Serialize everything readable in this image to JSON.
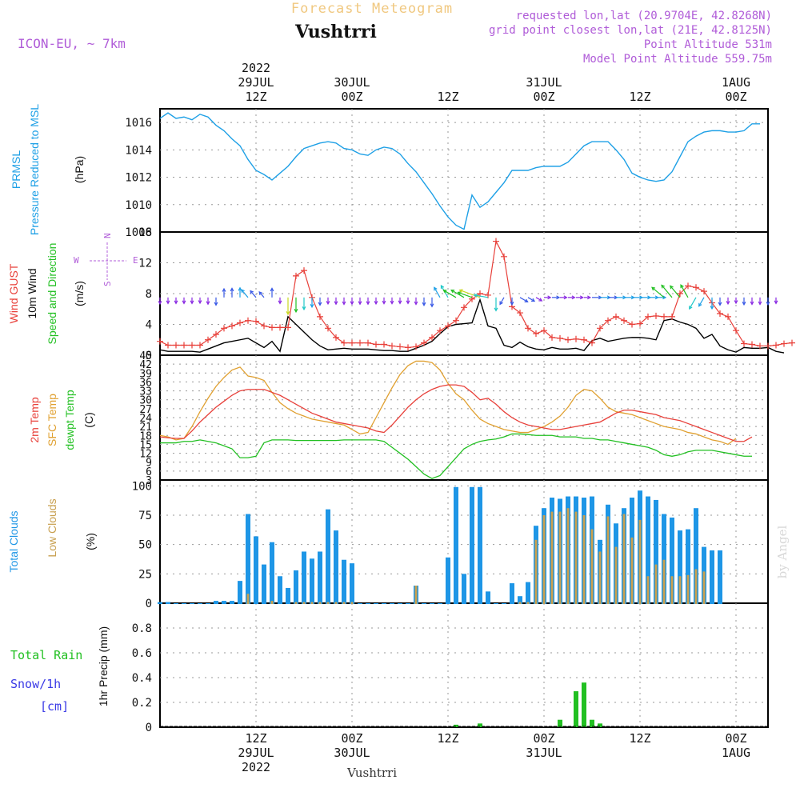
{
  "header": {
    "app_title": "Forecast Meteogram",
    "location": "Vushtrri",
    "model": "ICON-EU, ~ 7km",
    "requested": "requested lon,lat (20.9704E, 42.8268N)",
    "grid": "grid point closest lon,lat (21E, 42.8125N)",
    "point_alt": "Point Altitude 531m",
    "model_alt": "Model Point Altitude 559.75m",
    "footer": "Vushtrri",
    "credit": "by Angel"
  },
  "colors": {
    "pressure": "#1ea0e6",
    "gust": "#e8403a",
    "wind": "#000000",
    "sfc": "#e0a030",
    "dew": "#22c022",
    "total_cloud": "#1e96e6",
    "low_cloud": "#c8a050",
    "rain": "#22c022",
    "snow": "#3a3ae6",
    "purple": "#b05cd8"
  },
  "time_axis": {
    "ticks": [
      {
        "t": 12,
        "top": [
          "2022",
          "29JUL",
          "12Z"
        ],
        "bottom": [
          "12Z",
          "29JUL",
          "2022"
        ]
      },
      {
        "t": 24,
        "top": [
          "30JUL",
          "00Z"
        ],
        "bottom": [
          "00Z",
          "30JUL"
        ]
      },
      {
        "t": 36,
        "top": [
          "12Z"
        ],
        "bottom": [
          "12Z"
        ]
      },
      {
        "t": 48,
        "top": [
          "31JUL",
          "00Z"
        ],
        "bottom": [
          "00Z",
          "31JUL"
        ]
      },
      {
        "t": 60,
        "top": [
          "12Z"
        ],
        "bottom": [
          "12Z"
        ]
      },
      {
        "t": 72,
        "top": [
          "1AUG",
          "00Z"
        ],
        "bottom": [
          "00Z",
          "1AUG"
        ]
      }
    ]
  },
  "panels": {
    "pressure": {
      "labels": [
        "PRMSL",
        "Pressure Reduced to MSL"
      ],
      "unit": "(hPa)"
    },
    "wind": {
      "labels": [
        "Wind GUST",
        "10m Wind",
        "Speed and Direction"
      ],
      "unit": "(m/s)",
      "compass": {
        "w": "W",
        "e": "E",
        "s": "S",
        "n": "N"
      }
    },
    "temp": {
      "labels": [
        "2m Temp",
        "SFC Temp",
        "dewpt Temp"
      ],
      "unit": "(C)"
    },
    "cloud": {
      "labels": [
        "Total Clouds",
        "Low Clouds"
      ],
      "unit": "(%)"
    },
    "precip": {
      "labels": [
        "Total  Rain",
        "Snow/1h",
        "[cm]",
        "1hr Precip (mm)"
      ]
    }
  },
  "chart_data": {
    "type": "line",
    "x_start": "2022-07-29 01Z",
    "x_range_hours": [
      0,
      76
    ],
    "step_hours": 1,
    "pressure": {
      "ylim": [
        1008,
        1017
      ],
      "ticks": [
        1008,
        1010,
        1012,
        1014,
        1016
      ],
      "values": [
        1016.3,
        1016.7,
        1016.3,
        1016.4,
        1016.2,
        1016.6,
        1016.4,
        1015.8,
        1015.4,
        1014.8,
        1014.3,
        1013.3,
        1012.5,
        1012.2,
        1011.8,
        1012.3,
        1012.8,
        1013.5,
        1014.1,
        1014.3,
        1014.5,
        1014.6,
        1014.5,
        1014.1,
        1014.0,
        1013.7,
        1013.6,
        1014.0,
        1014.2,
        1014.1,
        1013.7,
        1013.0,
        1012.4,
        1011.6,
        1010.8,
        1009.9,
        1009.1,
        1008.5,
        1008.2,
        1010.7,
        1009.8,
        1010.2,
        1010.9,
        1011.6,
        1012.5,
        1012.5,
        1012.5,
        1012.7,
        1012.8,
        1012.8,
        1012.8,
        1013.1,
        1013.7,
        1014.3,
        1014.6,
        1014.6,
        1014.6,
        1014.0,
        1013.3,
        1012.3,
        1012.0,
        1011.8,
        1011.7,
        1011.8,
        1012.4,
        1013.5,
        1014.6,
        1015.0,
        1015.3,
        1015.4,
        1015.4,
        1015.3,
        1015.3,
        1015.4,
        1015.9,
        1015.9
      ]
    },
    "wind": {
      "ylim": [
        0,
        16
      ],
      "ticks": [
        0,
        4,
        8,
        12,
        16
      ],
      "gust": [
        1.8,
        1.3,
        1.3,
        1.3,
        1.3,
        1.3,
        2.0,
        2.7,
        3.5,
        3.8,
        4.2,
        4.5,
        4.4,
        3.8,
        3.6,
        3.6,
        3.6,
        10.3,
        11.0,
        7.5,
        5.0,
        3.5,
        2.3,
        1.6,
        1.6,
        1.6,
        1.6,
        1.4,
        1.4,
        1.2,
        1.1,
        1.0,
        1.1,
        1.6,
        2.3,
        3.2,
        3.8,
        4.5,
        6.2,
        7.3,
        8.0,
        7.8,
        14.8,
        12.8,
        6.3,
        5.5,
        3.5,
        2.8,
        3.2,
        2.3,
        2.2,
        2.0,
        2.1,
        2.0,
        1.6,
        3.5,
        4.5,
        5.0,
        4.5,
        4.0,
        4.1,
        5.0,
        5.1,
        5.0,
        5.0,
        8.0,
        9.0,
        8.8,
        8.3,
        6.8,
        5.4,
        5.0,
        3.2,
        1.5,
        1.4,
        1.2,
        1.2,
        1.3,
        1.5,
        1.6
      ],
      "wind": [
        0.7,
        0.5,
        0.5,
        0.5,
        0.5,
        0.4,
        0.8,
        1.2,
        1.6,
        1.8,
        2.0,
        2.2,
        1.6,
        1.0,
        1.8,
        0.5,
        5.0,
        4.0,
        3.0,
        2.0,
        1.2,
        0.7,
        0.8,
        0.9,
        0.8,
        0.8,
        0.8,
        0.7,
        0.6,
        0.6,
        0.5,
        0.5,
        0.9,
        1.3,
        1.8,
        2.8,
        3.7,
        4.0,
        4.1,
        4.2,
        7.2,
        3.8,
        3.5,
        1.3,
        1.0,
        1.7,
        1.1,
        0.8,
        0.7,
        1.0,
        0.8,
        0.8,
        0.9,
        0.6,
        1.9,
        2.2,
        1.8,
        2.0,
        2.2,
        2.3,
        2.3,
        2.2,
        2.0,
        4.5,
        4.7,
        4.3,
        4.0,
        3.5,
        2.2,
        2.7,
        1.2,
        0.7,
        0.4,
        1.0,
        0.9,
        0.9,
        1.0,
        0.5,
        0.3
      ],
      "direction_deg": [
        0,
        0,
        0,
        0,
        0,
        0,
        0,
        0,
        180,
        180,
        180,
        220,
        220,
        220,
        180,
        0,
        0,
        0,
        0,
        0,
        0,
        0,
        0,
        0,
        0,
        0,
        0,
        0,
        0,
        0,
        0,
        0,
        0,
        0,
        0,
        210,
        210,
        240,
        240,
        250,
        250,
        260,
        0,
        330,
        0,
        60,
        60,
        60,
        90,
        90,
        90,
        90,
        90,
        90,
        90,
        90,
        90,
        90,
        90,
        90,
        90,
        90,
        90,
        230,
        220,
        220,
        210,
        330,
        330,
        0,
        0,
        0,
        0,
        0,
        0,
        0,
        0,
        0
      ]
    },
    "temp": {
      "ylim": [
        3,
        45
      ],
      "ticks": [
        3,
        6,
        9,
        12,
        15,
        18,
        21,
        24,
        27,
        30,
        33,
        36,
        39,
        42,
        45
      ],
      "t2m": [
        17.5,
        17.2,
        17.0,
        17.0,
        19.5,
        22.5,
        25.0,
        27.5,
        29.5,
        31.5,
        33.0,
        33.5,
        33.5,
        33.5,
        32.5,
        31.5,
        30.0,
        28.5,
        27.0,
        25.5,
        24.5,
        23.5,
        22.5,
        22.0,
        21.5,
        21.0,
        20.5,
        19.5,
        19.0,
        21.5,
        24.5,
        27.5,
        30.0,
        32.0,
        33.5,
        34.5,
        35.0,
        35.0,
        34.5,
        32.5,
        30.0,
        30.5,
        28.5,
        26.0,
        24.0,
        22.5,
        21.5,
        21.0,
        20.5,
        20.0,
        20.0,
        20.5,
        21.0,
        21.5,
        22.0,
        22.5,
        24.0,
        25.5,
        26.5,
        26.5,
        26.0,
        25.5,
        25.0,
        24.0,
        23.5,
        23.0,
        22.0,
        21.0,
        20.0,
        19.0,
        18.0,
        17.0,
        16.0,
        16.0,
        17.5
      ],
      "sfc": [
        18.0,
        17.5,
        16.5,
        17.0,
        21.0,
        26.0,
        30.5,
        34.5,
        37.5,
        40.0,
        41.0,
        38.0,
        37.5,
        36.5,
        32.5,
        29.0,
        27.0,
        25.5,
        24.5,
        23.5,
        23.0,
        22.5,
        22.0,
        21.5,
        20.0,
        18.5,
        19.0,
        24.0,
        29.0,
        34.0,
        38.5,
        41.5,
        43.0,
        43.0,
        42.5,
        40.0,
        35.5,
        32.0,
        30.0,
        26.5,
        23.5,
        22.0,
        21.0,
        20.0,
        19.5,
        19.0,
        19.0,
        20.0,
        21.0,
        22.5,
        24.5,
        27.5,
        31.5,
        33.5,
        33.0,
        30.5,
        27.5,
        26.0,
        25.5,
        25.0,
        24.0,
        23.0,
        22.0,
        21.0,
        20.5,
        20.0,
        19.0,
        18.5,
        17.5,
        16.5,
        16.0,
        15.0,
        17.0
      ],
      "dew": [
        15.5,
        15.5,
        15.5,
        16.0,
        16.0,
        16.5,
        16.0,
        15.5,
        14.5,
        13.5,
        10.5,
        10.5,
        11.0,
        15.5,
        16.5,
        16.5,
        16.5,
        16.3,
        16.3,
        16.3,
        16.3,
        16.3,
        16.3,
        16.5,
        16.5,
        16.5,
        16.5,
        16.5,
        16.0,
        14.0,
        12.0,
        10.0,
        7.5,
        5.0,
        3.5,
        4.5,
        7.5,
        10.5,
        13.5,
        15.0,
        16.0,
        16.5,
        16.8,
        17.5,
        18.5,
        18.5,
        18.3,
        18.0,
        18.0,
        18.0,
        17.5,
        17.5,
        17.5,
        17.0,
        17.0,
        16.5,
        16.5,
        16.0,
        15.5,
        15.0,
        14.5,
        14.0,
        13.0,
        11.5,
        11.0,
        11.5,
        12.5,
        13.0,
        13.0,
        13.0,
        12.5,
        12.0,
        11.5,
        11.0,
        11.0
      ]
    },
    "cloud": {
      "ylim": [
        0,
        105
      ],
      "ticks": [
        0,
        25,
        50,
        75,
        100
      ],
      "total": [
        1,
        1,
        0,
        0,
        0,
        0,
        0,
        2,
        2,
        2,
        19,
        76,
        57,
        33,
        52,
        23,
        13,
        28,
        44,
        38,
        44,
        80,
        62,
        37,
        34,
        0,
        0,
        0,
        0,
        0,
        0,
        0,
        15,
        0,
        0,
        0,
        39,
        99,
        25,
        99,
        99,
        10,
        0,
        0,
        17,
        6,
        18,
        66,
        81,
        90,
        89,
        91,
        91,
        90,
        91,
        54,
        84,
        68,
        81,
        90,
        96,
        91,
        88,
        76,
        73,
        62,
        63,
        81,
        48,
        45,
        45
      ],
      "low": [
        0,
        0,
        0,
        0,
        0,
        0,
        0,
        0,
        0,
        0,
        0,
        8,
        0,
        0,
        2,
        0,
        0,
        1,
        1,
        1,
        1,
        1,
        1,
        1,
        1,
        0,
        0,
        0,
        0,
        0,
        0,
        0,
        15,
        0,
        0,
        0,
        0,
        0,
        0,
        0,
        0,
        0,
        0,
        0,
        0,
        1,
        1,
        54,
        75,
        78,
        78,
        81,
        78,
        75,
        63,
        44,
        74,
        48,
        76,
        56,
        71,
        23,
        33,
        37,
        23,
        23,
        24,
        29,
        27,
        0,
        0
      ]
    },
    "cloud_x_start": 0,
    "precip": {
      "ylim": [
        0,
        1.0
      ],
      "ticks": [
        0,
        0.2,
        0.4,
        0.6,
        0.8
      ],
      "rain": [
        {
          "t": 37,
          "v": 0.02
        },
        {
          "t": 40,
          "v": 0.03
        },
        {
          "t": 50,
          "v": 0.06
        },
        {
          "t": 52,
          "v": 0.29
        },
        {
          "t": 53,
          "v": 0.36
        },
        {
          "t": 54,
          "v": 0.06
        },
        {
          "t": 55,
          "v": 0.03
        }
      ],
      "snow": []
    }
  }
}
